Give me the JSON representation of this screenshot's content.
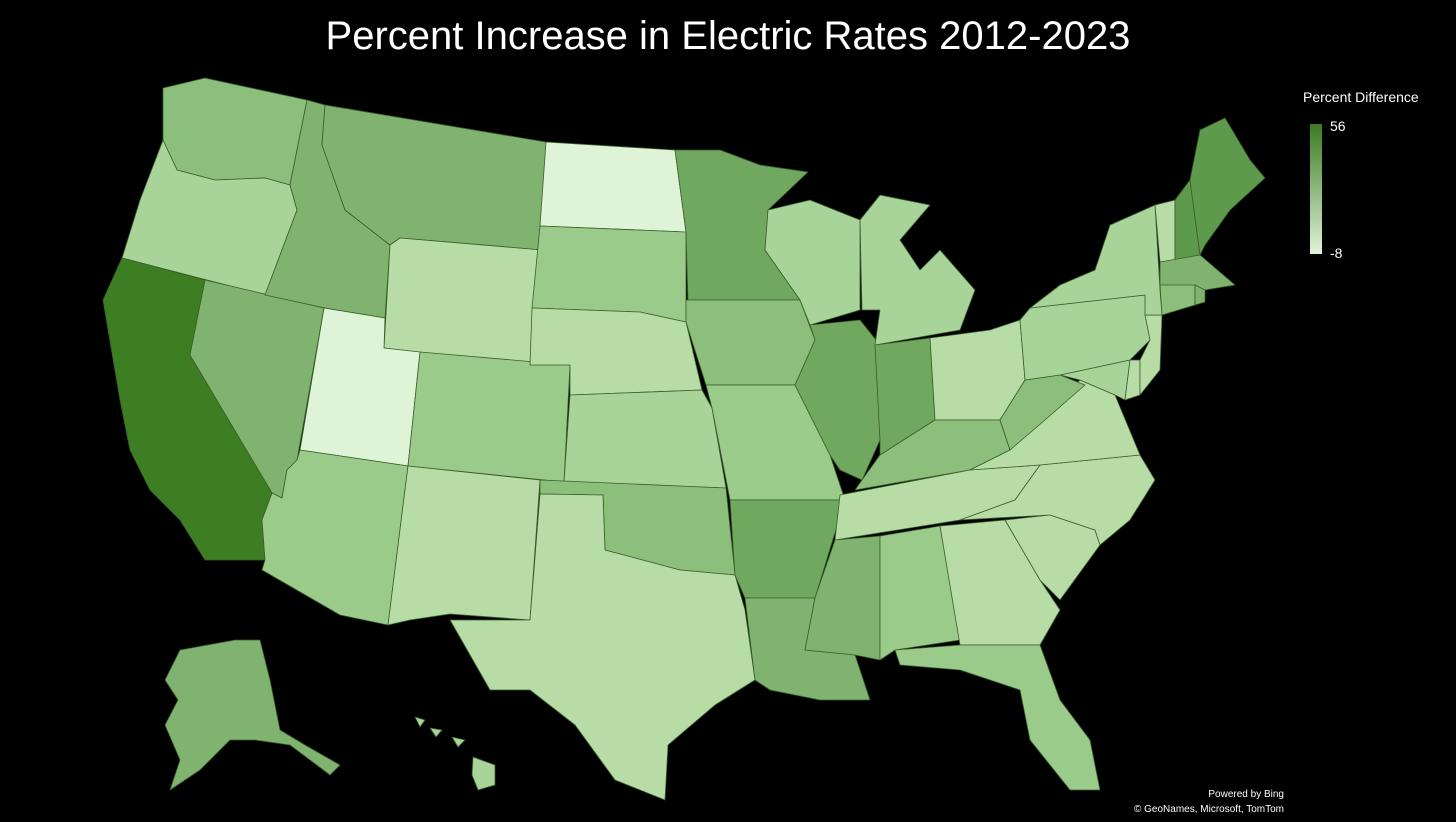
{
  "title": "Percent Increase in Electric Rates 2012-2023",
  "legend": {
    "title": "Percent Difference",
    "max_label": "56",
    "min_label": "-8",
    "color_max": "#3a7b22",
    "color_min": "#e0f3d9"
  },
  "attribution": {
    "line1": "Powered by Bing",
    "line2": "© GeoNames, Microsoft, TomTom"
  },
  "background_color": "#000000",
  "map": {
    "type": "choropleth",
    "region": "United States",
    "palette": {
      "c0": "#dff3d6",
      "c1": "#b7dca6",
      "c2": "#a8d399",
      "c3": "#9acb8b",
      "c4": "#8cbe7c",
      "c5": "#7fb36f",
      "c6": "#6fa85e",
      "c7": "#5e9a4b",
      "c8": "#3e7e23"
    },
    "states": [
      {
        "name": "Washington",
        "shade": "c4"
      },
      {
        "name": "Oregon",
        "shade": "c2"
      },
      {
        "name": "California",
        "shade": "c8"
      },
      {
        "name": "Nevada",
        "shade": "c5"
      },
      {
        "name": "Idaho",
        "shade": "c5"
      },
      {
        "name": "Montana",
        "shade": "c5"
      },
      {
        "name": "Wyoming",
        "shade": "c1"
      },
      {
        "name": "Utah",
        "shade": "c0"
      },
      {
        "name": "Arizona",
        "shade": "c3"
      },
      {
        "name": "Colorado",
        "shade": "c3"
      },
      {
        "name": "New Mexico",
        "shade": "c1"
      },
      {
        "name": "North Dakota",
        "shade": "c0"
      },
      {
        "name": "South Dakota",
        "shade": "c3"
      },
      {
        "name": "Nebraska",
        "shade": "c1"
      },
      {
        "name": "Kansas",
        "shade": "c2"
      },
      {
        "name": "Oklahoma",
        "shade": "c4"
      },
      {
        "name": "Texas",
        "shade": "c1"
      },
      {
        "name": "Minnesota",
        "shade": "c6"
      },
      {
        "name": "Iowa",
        "shade": "c4"
      },
      {
        "name": "Missouri",
        "shade": "c3"
      },
      {
        "name": "Arkansas",
        "shade": "c6"
      },
      {
        "name": "Louisiana",
        "shade": "c5"
      },
      {
        "name": "Wisconsin",
        "shade": "c2"
      },
      {
        "name": "Illinois",
        "shade": "c6"
      },
      {
        "name": "Michigan",
        "shade": "c2"
      },
      {
        "name": "Indiana",
        "shade": "c6"
      },
      {
        "name": "Ohio",
        "shade": "c1"
      },
      {
        "name": "Kentucky",
        "shade": "c4"
      },
      {
        "name": "Tennessee",
        "shade": "c1"
      },
      {
        "name": "Mississippi",
        "shade": "c5"
      },
      {
        "name": "Alabama",
        "shade": "c3"
      },
      {
        "name": "Georgia",
        "shade": "c1"
      },
      {
        "name": "Florida",
        "shade": "c3"
      },
      {
        "name": "South Carolina",
        "shade": "c1"
      },
      {
        "name": "North Carolina",
        "shade": "c1"
      },
      {
        "name": "Virginia",
        "shade": "c1"
      },
      {
        "name": "West Virginia",
        "shade": "c4"
      },
      {
        "name": "Pennsylvania",
        "shade": "c2"
      },
      {
        "name": "New York",
        "shade": "c2"
      },
      {
        "name": "Vermont",
        "shade": "c1"
      },
      {
        "name": "New Hampshire",
        "shade": "c7"
      },
      {
        "name": "Maine",
        "shade": "c7"
      },
      {
        "name": "Massachusetts",
        "shade": "c5"
      },
      {
        "name": "Connecticut",
        "shade": "c4"
      },
      {
        "name": "Rhode Island",
        "shade": "c5"
      },
      {
        "name": "New Jersey",
        "shade": "c1"
      },
      {
        "name": "Delaware",
        "shade": "c1"
      },
      {
        "name": "Maryland",
        "shade": "c2"
      },
      {
        "name": "Alaska",
        "shade": "c5"
      },
      {
        "name": "Hawaii",
        "shade": "c2"
      }
    ]
  }
}
